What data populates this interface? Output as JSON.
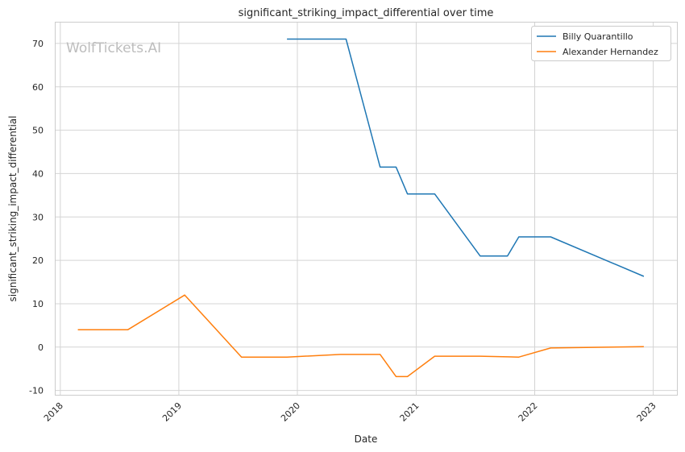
{
  "chart_data": {
    "type": "line",
    "title": "significant_striking_impact_differential over time",
    "xlabel": "Date",
    "ylabel": "significant_striking_impact_differential",
    "watermark": "WolfTickets.AI",
    "xlim": [
      "2017-12-15",
      "2023-03-15"
    ],
    "ylim": [
      -11,
      75
    ],
    "x_ticks": [
      "2018-01-01",
      "2019-01-01",
      "2020-01-01",
      "2021-01-01",
      "2022-01-01",
      "2023-01-01"
    ],
    "x_tick_labels": [
      "2018",
      "2019",
      "2020",
      "2021",
      "2022",
      "2023"
    ],
    "y_ticks": [
      -10,
      0,
      10,
      20,
      30,
      40,
      50,
      60,
      70
    ],
    "grid": true,
    "legend_position": "top-right",
    "series": [
      {
        "name": "Billy Quarantillo",
        "color": "#1f77b4",
        "points": [
          {
            "x": "2019-11-30",
            "y": 71.0
          },
          {
            "x": "2020-05-30",
            "y": 71.0
          },
          {
            "x": "2020-09-12",
            "y": 41.5
          },
          {
            "x": "2020-10-31",
            "y": 41.5
          },
          {
            "x": "2020-12-05",
            "y": 35.3
          },
          {
            "x": "2021-02-27",
            "y": 35.3
          },
          {
            "x": "2021-07-17",
            "y": 21.0
          },
          {
            "x": "2021-10-09",
            "y": 21.0
          },
          {
            "x": "2021-11-13",
            "y": 25.4
          },
          {
            "x": "2022-02-19",
            "y": 25.4
          },
          {
            "x": "2022-12-03",
            "y": 16.3
          }
        ]
      },
      {
        "name": "Alexander Hernandez",
        "color": "#ff7f0e",
        "points": [
          {
            "x": "2018-02-24",
            "y": 4.0
          },
          {
            "x": "2018-07-28",
            "y": 4.0
          },
          {
            "x": "2019-01-19",
            "y": 12.0
          },
          {
            "x": "2019-07-13",
            "y": -2.3
          },
          {
            "x": "2019-11-30",
            "y": -2.3
          },
          {
            "x": "2020-05-13",
            "y": -1.7
          },
          {
            "x": "2020-09-12",
            "y": -1.7
          },
          {
            "x": "2020-10-31",
            "y": -6.8
          },
          {
            "x": "2020-12-05",
            "y": -6.8
          },
          {
            "x": "2021-02-27",
            "y": -2.1
          },
          {
            "x": "2021-07-17",
            "y": -2.1
          },
          {
            "x": "2021-11-13",
            "y": -2.3
          },
          {
            "x": "2022-02-19",
            "y": -0.2
          },
          {
            "x": "2022-12-03",
            "y": 0.1
          }
        ]
      }
    ]
  }
}
